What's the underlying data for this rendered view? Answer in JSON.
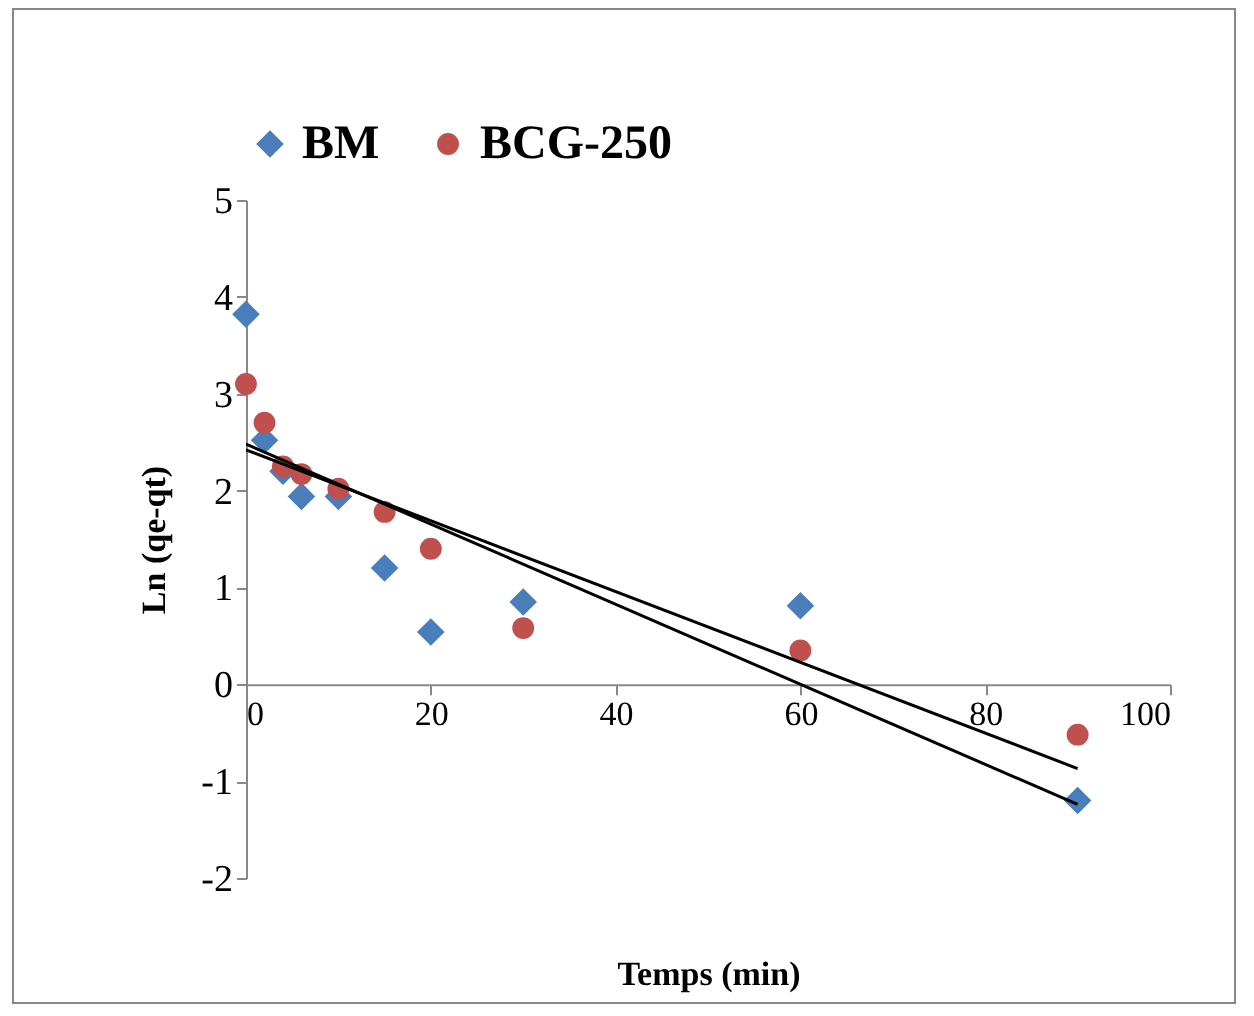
{
  "chart_data": {
    "type": "scatter",
    "xlabel": "Temps (min)",
    "ylabel": "Ln (qe-qt)",
    "xlim": [
      0,
      100
    ],
    "xticks": [
      0,
      20,
      40,
      60,
      80,
      100
    ],
    "ylim": [
      -2,
      5
    ],
    "yticks": [
      -2,
      -1,
      0,
      1,
      2,
      3,
      4,
      5
    ],
    "grid": false,
    "legend": "top",
    "series": [
      {
        "name": "BM",
        "color": "#4a7ebb",
        "marker": "diamond",
        "x": [
          0,
          2,
          4,
          6,
          10,
          15,
          20,
          30,
          60,
          90
        ],
        "values": [
          3.82,
          2.52,
          2.2,
          1.94,
          1.94,
          1.2,
          0.54,
          0.85,
          0.81,
          -1.2
        ]
      },
      {
        "name": "BCG-250",
        "color": "#c0504d",
        "marker": "circle",
        "x": [
          0,
          2,
          4,
          6,
          10,
          15,
          20,
          30,
          60,
          90
        ],
        "values": [
          3.1,
          2.7,
          2.25,
          2.17,
          2.02,
          1.78,
          1.4,
          0.58,
          0.35,
          -0.52
        ]
      },
      {
        "type": "line",
        "color": "#000000",
        "x": [
          0,
          90
        ],
        "values": [
          2.48,
          -1.24
        ]
      },
      {
        "type": "line",
        "color": "#000000",
        "x": [
          0,
          90
        ],
        "values": [
          2.42,
          -0.87
        ]
      }
    ]
  }
}
